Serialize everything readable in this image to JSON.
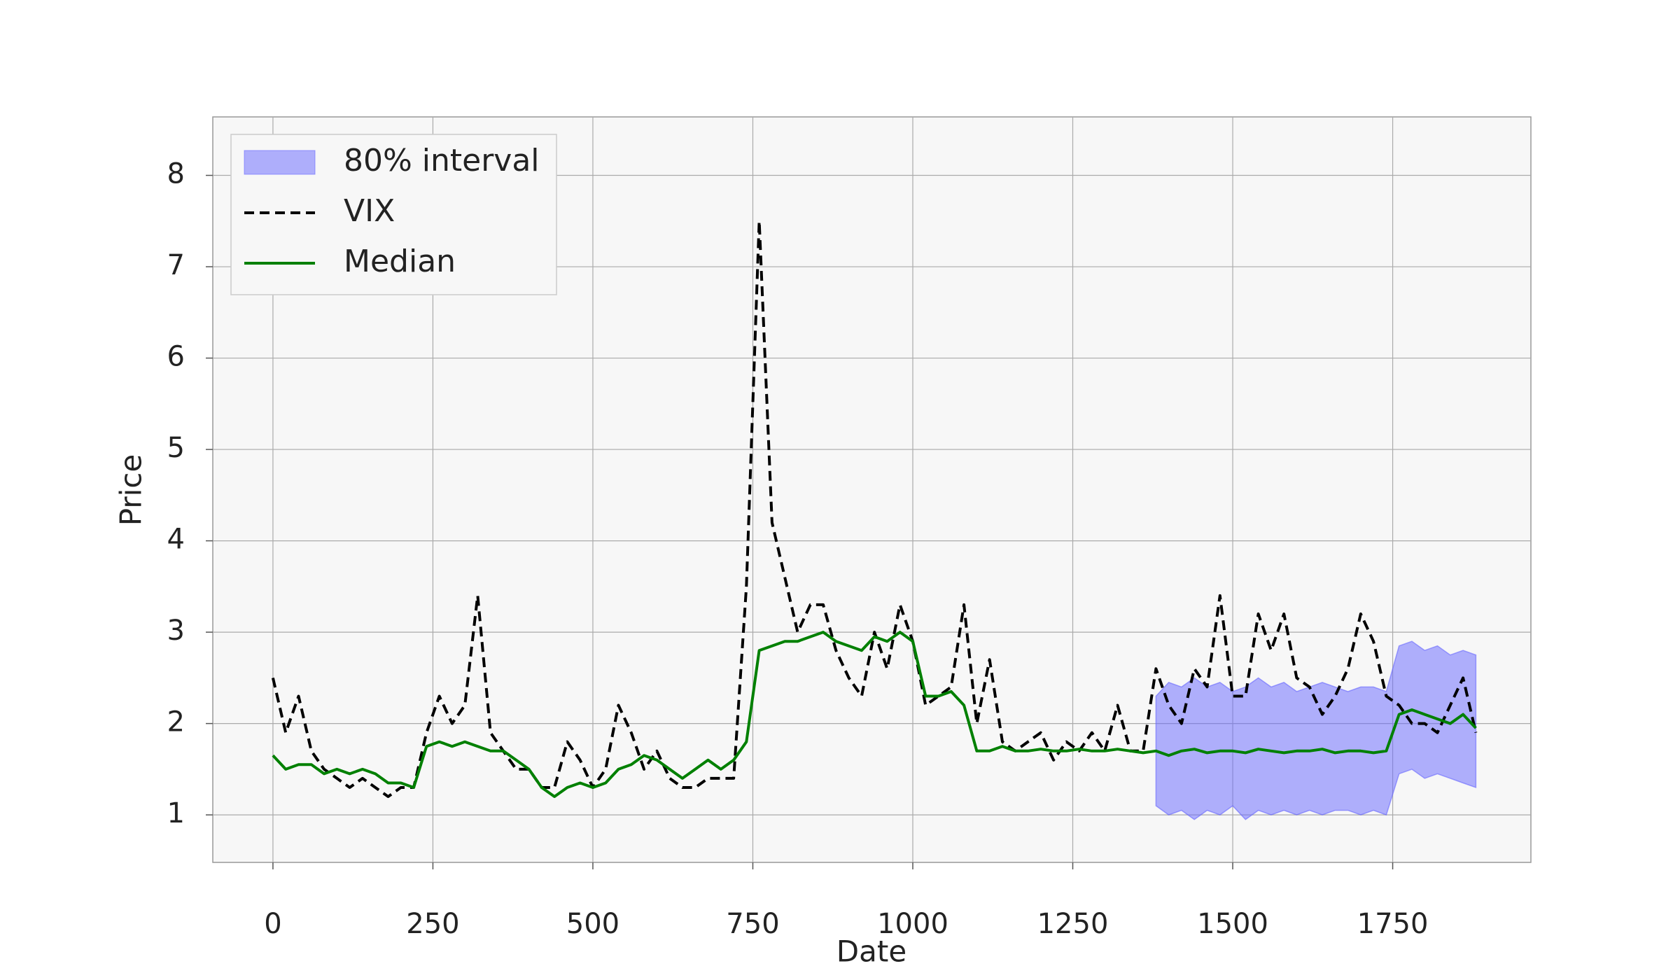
{
  "chart_data": {
    "type": "line",
    "xlabel": "Date",
    "ylabel": "Price",
    "xlim": [
      -94,
      1966
    ],
    "ylim": [
      0.48,
      8.64
    ],
    "xticks": [
      0,
      250,
      500,
      750,
      1000,
      1250,
      1500,
      1750
    ],
    "yticks": [
      1,
      2,
      3,
      4,
      5,
      6,
      7,
      8
    ],
    "grid": true,
    "legend": "upper left",
    "x": [
      0,
      20,
      40,
      60,
      80,
      100,
      120,
      140,
      160,
      180,
      200,
      220,
      240,
      260,
      280,
      300,
      320,
      340,
      360,
      380,
      400,
      420,
      440,
      460,
      480,
      500,
      520,
      540,
      560,
      580,
      600,
      620,
      640,
      660,
      680,
      700,
      720,
      740,
      760,
      780,
      800,
      820,
      840,
      860,
      880,
      900,
      920,
      940,
      960,
      980,
      1000,
      1020,
      1040,
      1060,
      1080,
      1100,
      1120,
      1140,
      1160,
      1180,
      1200,
      1220,
      1240,
      1260,
      1280,
      1300,
      1320,
      1340,
      1360,
      1380,
      1400,
      1420,
      1440,
      1460,
      1480,
      1500,
      1520,
      1540,
      1560,
      1580,
      1600,
      1620,
      1640,
      1660,
      1680,
      1700,
      1720,
      1740,
      1760,
      1780,
      1800,
      1820,
      1840,
      1860,
      1880
    ],
    "series": [
      {
        "name": "80% interval",
        "color": "#6666ff",
        "style": "band",
        "lower": [
          null,
          null,
          null,
          null,
          null,
          null,
          null,
          null,
          null,
          null,
          null,
          null,
          null,
          null,
          null,
          null,
          null,
          null,
          null,
          null,
          null,
          null,
          null,
          null,
          null,
          null,
          null,
          null,
          null,
          null,
          null,
          null,
          null,
          null,
          null,
          null,
          null,
          null,
          null,
          null,
          null,
          null,
          null,
          null,
          null,
          null,
          null,
          null,
          null,
          null,
          null,
          null,
          null,
          null,
          null,
          null,
          null,
          null,
          null,
          null,
          null,
          null,
          null,
          null,
          null,
          null,
          null,
          null,
          null,
          1.1,
          1.0,
          1.05,
          0.95,
          1.05,
          1.0,
          1.1,
          0.95,
          1.05,
          1.0,
          1.05,
          1.0,
          1.05,
          1.0,
          1.05,
          1.05,
          1.0,
          1.05,
          1.0,
          1.45,
          1.5,
          1.4,
          1.45,
          1.4,
          1.35,
          1.3
        ],
        "upper": [
          null,
          null,
          null,
          null,
          null,
          null,
          null,
          null,
          null,
          null,
          null,
          null,
          null,
          null,
          null,
          null,
          null,
          null,
          null,
          null,
          null,
          null,
          null,
          null,
          null,
          null,
          null,
          null,
          null,
          null,
          null,
          null,
          null,
          null,
          null,
          null,
          null,
          null,
          null,
          null,
          null,
          null,
          null,
          null,
          null,
          null,
          null,
          null,
          null,
          null,
          null,
          null,
          null,
          null,
          null,
          null,
          null,
          null,
          null,
          null,
          null,
          null,
          null,
          null,
          null,
          null,
          null,
          null,
          null,
          2.3,
          2.45,
          2.4,
          2.5,
          2.4,
          2.45,
          2.35,
          2.4,
          2.5,
          2.4,
          2.45,
          2.35,
          2.4,
          2.45,
          2.4,
          2.35,
          2.4,
          2.4,
          2.35,
          2.85,
          2.9,
          2.8,
          2.85,
          2.75,
          2.8,
          2.75
        ]
      },
      {
        "name": "VIX",
        "color": "#000000",
        "style": "dashed",
        "values": [
          2.5,
          1.9,
          2.3,
          1.7,
          1.5,
          1.4,
          1.3,
          1.4,
          1.3,
          1.2,
          1.3,
          1.3,
          1.9,
          2.3,
          2.0,
          2.2,
          3.4,
          1.9,
          1.7,
          1.5,
          1.5,
          1.3,
          1.3,
          1.8,
          1.6,
          1.3,
          1.5,
          2.2,
          1.9,
          1.5,
          1.7,
          1.4,
          1.3,
          1.3,
          1.4,
          1.4,
          1.4,
          3.5,
          7.5,
          4.2,
          3.6,
          3.0,
          3.3,
          3.3,
          2.8,
          2.5,
          2.3,
          3.0,
          2.6,
          3.3,
          2.9,
          2.2,
          2.3,
          2.4,
          3.3,
          2.0,
          2.7,
          1.8,
          1.7,
          1.8,
          1.9,
          1.6,
          1.8,
          1.7,
          1.9,
          1.7,
          2.2,
          1.7,
          1.7,
          2.6,
          2.2,
          2.0,
          2.6,
          2.4,
          3.4,
          2.3,
          2.3,
          3.2,
          2.8,
          3.2,
          2.5,
          2.4,
          2.1,
          2.3,
          2.6,
          3.2,
          2.9,
          2.3,
          2.2,
          2.0,
          2.0,
          1.9,
          2.2,
          2.5,
          1.9
        ]
      },
      {
        "name": "Median",
        "color": "#008000",
        "style": "solid",
        "values": [
          1.65,
          1.5,
          1.55,
          1.55,
          1.45,
          1.5,
          1.45,
          1.5,
          1.45,
          1.35,
          1.35,
          1.3,
          1.75,
          1.8,
          1.75,
          1.8,
          1.75,
          1.7,
          1.7,
          1.6,
          1.5,
          1.3,
          1.2,
          1.3,
          1.35,
          1.3,
          1.35,
          1.5,
          1.55,
          1.65,
          1.6,
          1.5,
          1.4,
          1.5,
          1.6,
          1.5,
          1.6,
          1.8,
          2.8,
          2.85,
          2.9,
          2.9,
          2.95,
          3.0,
          2.9,
          2.85,
          2.8,
          2.95,
          2.9,
          3.0,
          2.9,
          2.3,
          2.3,
          2.35,
          2.2,
          1.7,
          1.7,
          1.75,
          1.7,
          1.7,
          1.72,
          1.7,
          1.7,
          1.72,
          1.7,
          1.7,
          1.72,
          1.7,
          1.68,
          1.7,
          1.65,
          1.7,
          1.72,
          1.68,
          1.7,
          1.7,
          1.68,
          1.72,
          1.7,
          1.68,
          1.7,
          1.7,
          1.72,
          1.68,
          1.7,
          1.7,
          1.68,
          1.7,
          2.1,
          2.15,
          2.1,
          2.05,
          2.0,
          2.1,
          1.95
        ]
      }
    ]
  }
}
